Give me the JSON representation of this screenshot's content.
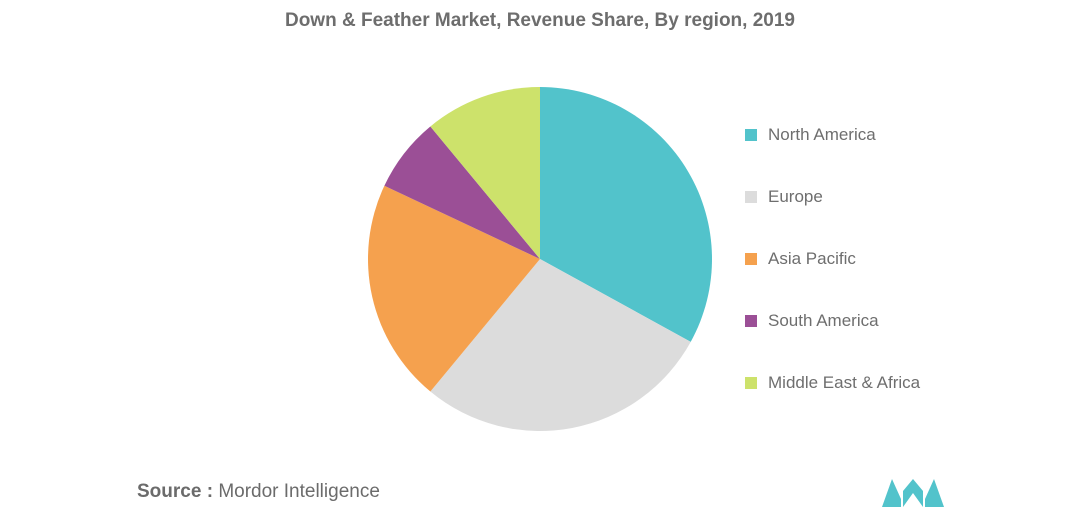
{
  "chart_data": {
    "type": "pie",
    "title": "Down & Feather Market, Revenue Share, By region, 2019",
    "unit": "percent (estimated)",
    "slices": [
      {
        "label": "North America",
        "value": 33,
        "color": "#52c3cb"
      },
      {
        "label": "Europe",
        "value": 28,
        "color": "#dcdcdc"
      },
      {
        "label": "Asia Pacific",
        "value": 21,
        "color": "#f5a14e"
      },
      {
        "label": "South America",
        "value": 7,
        "color": "#9b4f96"
      },
      {
        "label": "Middle East & Africa",
        "value": 11,
        "color": "#cde26b"
      }
    ],
    "start_angle_deg": 0,
    "direction": "clockwise",
    "legend_position": "right"
  },
  "source": {
    "prefix": "Source :",
    "name": "Mordor Intelligence"
  },
  "logo": {
    "icon": "mordor-intelligence-logo-icon",
    "color": "#52c3cb"
  }
}
